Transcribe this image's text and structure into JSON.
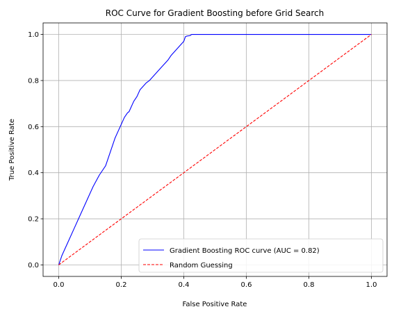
{
  "chart_data": {
    "type": "line",
    "title": "ROC Curve for Gradient Boosting before Grid Search",
    "xlabel": "False Positive Rate",
    "ylabel": "True Positive Rate",
    "xlim": [
      -0.05,
      1.05
    ],
    "ylim": [
      -0.05,
      1.05
    ],
    "xticks": [
      0.0,
      0.2,
      0.4,
      0.6,
      0.8,
      1.0
    ],
    "yticks": [
      0.0,
      0.2,
      0.4,
      0.6,
      0.8,
      1.0
    ],
    "xtick_labels": [
      "0.0",
      "0.2",
      "0.4",
      "0.6",
      "0.8",
      "1.0"
    ],
    "ytick_labels": [
      "0.0",
      "0.2",
      "0.4",
      "0.6",
      "0.8",
      "1.0"
    ],
    "grid": true,
    "legend_position": "lower-right",
    "series": [
      {
        "name": "Gradient Boosting ROC curve (AUC = 0.82)",
        "color": "#0000ff",
        "style": "solid",
        "x": [
          0.0,
          0.005,
          0.01,
          0.03,
          0.05,
          0.07,
          0.09,
          0.11,
          0.13,
          0.15,
          0.155,
          0.16,
          0.17,
          0.18,
          0.19,
          0.2,
          0.21,
          0.22,
          0.225,
          0.23,
          0.24,
          0.25,
          0.26,
          0.27,
          0.28,
          0.29,
          0.3,
          0.31,
          0.32,
          0.33,
          0.34,
          0.35,
          0.36,
          0.37,
          0.38,
          0.39,
          0.4,
          0.405,
          0.41,
          0.42,
          0.425,
          0.43,
          1.0
        ],
        "y": [
          0.0,
          0.02,
          0.04,
          0.1,
          0.16,
          0.22,
          0.28,
          0.34,
          0.39,
          0.43,
          0.45,
          0.47,
          0.51,
          0.55,
          0.58,
          0.61,
          0.64,
          0.66,
          0.665,
          0.68,
          0.71,
          0.73,
          0.76,
          0.775,
          0.79,
          0.8,
          0.815,
          0.83,
          0.845,
          0.86,
          0.875,
          0.89,
          0.91,
          0.925,
          0.94,
          0.955,
          0.97,
          0.99,
          0.993,
          0.995,
          1.0,
          1.0,
          1.0
        ]
      },
      {
        "name": "Random Guessing",
        "color": "#ff0000",
        "style": "dashed",
        "x": [
          0.0,
          1.0
        ],
        "y": [
          0.0,
          1.0
        ]
      }
    ]
  }
}
